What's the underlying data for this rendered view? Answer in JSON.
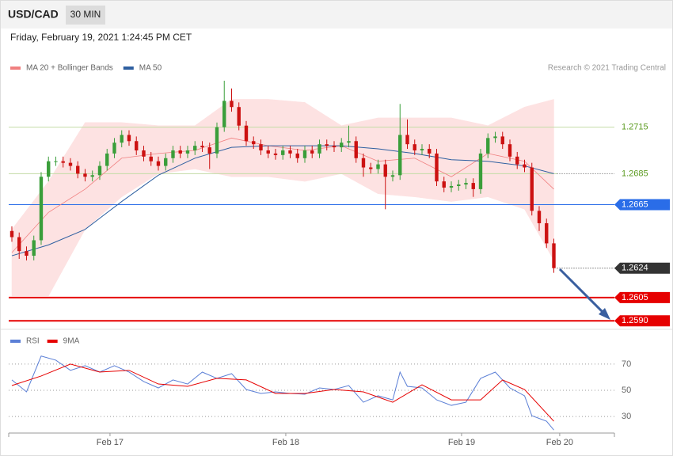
{
  "header": {
    "title": "USD/CAD",
    "timeframe": "30 MIN",
    "timestamp": "Friday, February 19, 2021 1:24:45 PM CET"
  },
  "chart_data": [
    {
      "type": "candlestick",
      "source": "Research © 2021 Trading Central",
      "up_color": "#3a9e3a",
      "down_color": "#cc1111",
      "xlim": [
        -0.43,
        82.27
      ],
      "ylim": [
        1.2585,
        1.2746
      ],
      "x": [
        0,
        1,
        2,
        3,
        4,
        5,
        6,
        7,
        8,
        9,
        10,
        11,
        12,
        13,
        14,
        15,
        16,
        17,
        18,
        19,
        20,
        21,
        22,
        23,
        24,
        25,
        26,
        27,
        28,
        29,
        30,
        31,
        32,
        33,
        34,
        35,
        36,
        37,
        38,
        39,
        40,
        41,
        42,
        43,
        44,
        45,
        46,
        47,
        48,
        49,
        50,
        51,
        52,
        53,
        54,
        55,
        56,
        57,
        58,
        59,
        60,
        61,
        62,
        63,
        64,
        65,
        66,
        67,
        68,
        69,
        70,
        71,
        72,
        73,
        74
      ],
      "open": [
        1.2648,
        1.2644,
        1.2635,
        1.2632,
        1.2642,
        1.2683,
        1.2693,
        1.2693,
        1.2692,
        1.269,
        1.2685,
        1.2683,
        1.2684,
        1.269,
        1.2698,
        1.2705,
        1.271,
        1.2706,
        1.27,
        1.2696,
        1.2693,
        1.269,
        1.2695,
        1.27,
        1.2698,
        1.27,
        1.2703,
        1.2702,
        1.2698,
        1.2715,
        1.2732,
        1.2728,
        1.2716,
        1.2706,
        1.2704,
        1.27,
        1.2698,
        1.2697,
        1.27,
        1.2698,
        1.2695,
        1.27,
        1.2698,
        1.2704,
        1.2703,
        1.2702,
        1.2705,
        1.2706,
        1.2695,
        1.2689,
        1.2688,
        1.2691,
        1.2683,
        1.2684,
        1.271,
        1.2704,
        1.27,
        1.2701,
        1.2698,
        1.268,
        1.2676,
        1.2677,
        1.2678,
        1.2679,
        1.2675,
        1.2698,
        1.2708,
        1.2709,
        1.2704,
        1.2696,
        1.2691,
        1.2689,
        1.2661,
        1.2653,
        1.264
      ],
      "high": [
        1.2651,
        1.2647,
        1.2638,
        1.2645,
        1.2686,
        1.2696,
        1.2696,
        1.2696,
        1.2695,
        1.2693,
        1.2688,
        1.2687,
        1.2693,
        1.2701,
        1.2708,
        1.2713,
        1.2713,
        1.2709,
        1.2703,
        1.2699,
        1.2696,
        1.2698,
        1.2703,
        1.2703,
        1.2703,
        1.2706,
        1.2706,
        1.2705,
        1.2718,
        1.2745,
        1.274,
        1.2731,
        1.2719,
        1.2709,
        1.2707,
        1.2703,
        1.2701,
        1.2703,
        1.2703,
        1.2701,
        1.2703,
        1.2703,
        1.2707,
        1.2707,
        1.2706,
        1.2708,
        1.2716,
        1.2709,
        1.2698,
        1.2692,
        1.2694,
        1.2694,
        1.2687,
        1.273,
        1.272,
        1.2707,
        1.2704,
        1.2704,
        1.2701,
        1.2683,
        1.268,
        1.2681,
        1.2682,
        1.2682,
        1.2701,
        1.2711,
        1.2712,
        1.2712,
        1.2707,
        1.2699,
        1.2694,
        1.2692,
        1.2664,
        1.2656,
        1.2643
      ],
      "low": [
        1.2641,
        1.263,
        1.2629,
        1.2629,
        1.2639,
        1.268,
        1.269,
        1.2689,
        1.2687,
        1.2682,
        1.268,
        1.268,
        1.2681,
        1.2687,
        1.2695,
        1.2702,
        1.2703,
        1.2697,
        1.2693,
        1.269,
        1.2687,
        1.2687,
        1.2692,
        1.2695,
        1.2695,
        1.2697,
        1.2699,
        1.2688,
        1.2695,
        1.2712,
        1.2725,
        1.2713,
        1.2703,
        1.2701,
        1.2697,
        1.2695,
        1.2694,
        1.2694,
        1.2695,
        1.2692,
        1.2692,
        1.2695,
        1.2695,
        1.27,
        1.2699,
        1.2699,
        1.2702,
        1.2692,
        1.2683,
        1.2685,
        1.2685,
        1.2662,
        1.268,
        1.2681,
        1.2701,
        1.2697,
        1.2697,
        1.2695,
        1.2677,
        1.2673,
        1.2673,
        1.2674,
        1.2675,
        1.267,
        1.2672,
        1.2695,
        1.2705,
        1.2701,
        1.2693,
        1.2688,
        1.2686,
        1.2658,
        1.2648,
        1.2637,
        1.2621
      ],
      "close": [
        1.2644,
        1.2635,
        1.2632,
        1.2642,
        1.2683,
        1.2693,
        1.2693,
        1.2692,
        1.269,
        1.2685,
        1.2683,
        1.2684,
        1.269,
        1.2698,
        1.2705,
        1.271,
        1.2706,
        1.27,
        1.2696,
        1.2693,
        1.269,
        1.2695,
        1.27,
        1.2698,
        1.27,
        1.2703,
        1.2702,
        1.2698,
        1.2715,
        1.2732,
        1.2728,
        1.2716,
        1.2706,
        1.2704,
        1.27,
        1.2698,
        1.2697,
        1.27,
        1.2698,
        1.2695,
        1.27,
        1.2698,
        1.2704,
        1.2703,
        1.2702,
        1.2705,
        1.2706,
        1.2695,
        1.2689,
        1.2688,
        1.2691,
        1.2683,
        1.2684,
        1.271,
        1.2704,
        1.27,
        1.2701,
        1.2698,
        1.268,
        1.2676,
        1.2677,
        1.2678,
        1.2679,
        1.2675,
        1.2698,
        1.2708,
        1.2709,
        1.2704,
        1.2696,
        1.2691,
        1.2689,
        1.2661,
        1.2653,
        1.264,
        1.2624
      ],
      "series": [
        {
          "name": "MA 20 + Bollinger Bands",
          "color": "#f08080",
          "band_color": "#fde2e2",
          "x": [
            0,
            5,
            10,
            15,
            20,
            25,
            30,
            35,
            40,
            45,
            50,
            55,
            60,
            65,
            70,
            74
          ],
          "values": [
            1.2634,
            1.266,
            1.2675,
            1.2695,
            1.2698,
            1.27,
            1.2708,
            1.2703,
            1.27,
            1.2703,
            1.2693,
            1.2695,
            1.2683,
            1.2698,
            1.2693,
            1.2675
          ],
          "upper": [
            1.2649,
            1.268,
            1.2718,
            1.2718,
            1.2716,
            1.2716,
            1.2733,
            1.2733,
            1.2731,
            1.2716,
            1.2721,
            1.2721,
            1.2721,
            1.2716,
            1.2728,
            1.2733
          ],
          "lower": [
            1.2606,
            1.2606,
            1.2649,
            1.267,
            1.2685,
            1.2688,
            1.2683,
            1.2683,
            1.268,
            1.2685,
            1.2672,
            1.267,
            1.2667,
            1.267,
            1.2662,
            1.2629
          ]
        },
        {
          "name": "MA 50",
          "color": "#2e5fa0",
          "x": [
            0,
            5,
            10,
            15,
            20,
            25,
            30,
            35,
            40,
            45,
            50,
            55,
            60,
            65,
            70,
            74
          ],
          "values": [
            1.2632,
            1.2639,
            1.2649,
            1.2667,
            1.2684,
            1.2695,
            1.2702,
            1.2703,
            1.2703,
            1.2703,
            1.2701,
            1.2698,
            1.2694,
            1.2693,
            1.269,
            1.2685
          ]
        }
      ],
      "levels": [
        {
          "value": 1.2715,
          "color": "#5a9a1e",
          "line_color": "#c2dca6",
          "line": "solid",
          "tag": false
        },
        {
          "value": 1.2685,
          "color": "#5a9a1e",
          "line_color": "#c2dca6",
          "line": "solid-dotted",
          "tag": false
        },
        {
          "value": 1.2665,
          "color": "#2a6de8",
          "line_color": "#2a6de8",
          "line": "solid",
          "tag": true
        },
        {
          "value": 1.2624,
          "color": "#333333",
          "line_color": "#333333",
          "line": "dotted",
          "tag": true
        },
        {
          "value": 1.2605,
          "color": "#e60000",
          "line_color": "#e60000",
          "line": "thick",
          "tag": true
        },
        {
          "value": 1.259,
          "label": "1.2590",
          "color": "#e60000",
          "line_color": "#e60000",
          "line": "thick",
          "tag": true
        }
      ]
    },
    {
      "type": "line",
      "xlim": [
        -0.43,
        82.27
      ],
      "ylim": [
        18,
        82
      ],
      "yticks": [
        30,
        50,
        70
      ],
      "grid": true,
      "xticks": [
        {
          "value": 13.4,
          "label": "Feb 17"
        },
        {
          "value": 37.4,
          "label": "Feb 18"
        },
        {
          "value": 61.4,
          "label": "Feb 19"
        },
        {
          "value": 74.8,
          "label": "Feb 20"
        }
      ],
      "series": [
        {
          "name": "RSI",
          "color": "#5b7fd6",
          "x": [
            0,
            2,
            4,
            6,
            8,
            10,
            12,
            14,
            16,
            18,
            20,
            22,
            24,
            26,
            28,
            30,
            32,
            34,
            36,
            38,
            40,
            42,
            44,
            46,
            48,
            50,
            52,
            53,
            54,
            56,
            58,
            60,
            62,
            64,
            66,
            68,
            70,
            71,
            73,
            74
          ],
          "values": [
            57.9,
            48.8,
            76.1,
            73.0,
            65.2,
            68.8,
            63.9,
            68.8,
            63.9,
            56.7,
            51.8,
            57.9,
            54.8,
            63.9,
            59.1,
            62.7,
            50.6,
            47.6,
            48.8,
            47.6,
            47.0,
            51.8,
            50.6,
            53.6,
            40.9,
            45.8,
            42.7,
            63.9,
            53.0,
            51.8,
            42.7,
            38.5,
            40.9,
            59.1,
            63.9,
            51.8,
            45.8,
            30.6,
            26.4,
            19.7
          ]
        },
        {
          "name": "9MA",
          "color": "#e60000",
          "x": [
            0,
            4,
            8,
            12,
            16,
            20,
            24,
            28,
            32,
            36,
            40,
            44,
            48,
            52,
            56,
            60,
            64,
            67,
            70,
            74
          ],
          "values": [
            53.6,
            60.9,
            70.0,
            63.9,
            65.2,
            54.8,
            53.0,
            59.1,
            57.9,
            47.6,
            47.6,
            50.6,
            48.8,
            40.9,
            54.2,
            42.7,
            42.7,
            57.9,
            50.6,
            26.4
          ]
        }
      ]
    }
  ]
}
